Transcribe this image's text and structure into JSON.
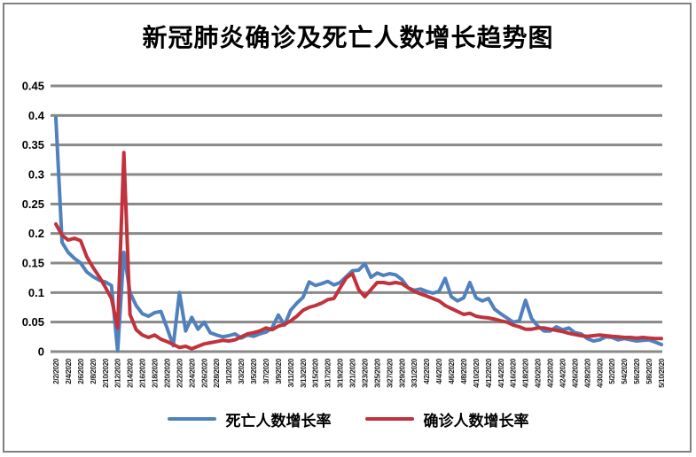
{
  "title": "新冠肺炎确诊及死亡人数增长趋势图",
  "colors": {
    "death_series": "#4F81BD",
    "confirmed_series": "#C0333D",
    "gridline": "#898989",
    "frame_border": "#808080",
    "axis_text": "#1a1a1a"
  },
  "legend": {
    "items": [
      {
        "label": "死亡人数增长率",
        "color": "#4F81BD"
      },
      {
        "label": "确诊人数增长率",
        "color": "#C0333D"
      }
    ]
  },
  "chart_data": {
    "type": "line",
    "title": "新冠肺炎确诊及死亡人数增长趋势图",
    "xlabel": "",
    "ylabel": "",
    "ylim": [
      0,
      0.45
    ],
    "y_ticks": [
      "0",
      "0.05",
      "0.1",
      "0.15",
      "0.2",
      "0.25",
      "0.3",
      "0.35",
      "0.4",
      "0.45"
    ],
    "grid": "horizontal",
    "legend_position": "bottom",
    "x_label_every": 2,
    "x": [
      "2/2/2020",
      "2/3/2020",
      "2/4/2020",
      "2/5/2020",
      "2/6/2020",
      "2/7/2020",
      "2/8/2020",
      "2/9/2020",
      "2/10/2020",
      "2/11/2020",
      "2/12/2020",
      "2/13/2020",
      "2/14/2020",
      "2/15/2020",
      "2/16/2020",
      "2/17/2020",
      "2/18/2020",
      "2/19/2020",
      "2/20/2020",
      "2/21/2020",
      "2/22/2020",
      "2/23/2020",
      "2/24/2020",
      "2/25/2020",
      "2/26/2020",
      "2/27/2020",
      "2/28/2020",
      "2/29/2020",
      "3/1/2020",
      "3/2/2020",
      "3/3/2020",
      "3/4/2020",
      "3/5/2020",
      "3/6/2020",
      "3/7/2020",
      "3/8/2020",
      "3/9/2020",
      "3/10/2020",
      "3/11/2020",
      "3/12/2020",
      "3/13/2020",
      "3/14/2020",
      "3/15/2020",
      "3/16/2020",
      "3/17/2020",
      "3/18/2020",
      "3/19/2020",
      "3/20/2020",
      "3/21/2020",
      "3/22/2020",
      "3/23/2020",
      "3/24/2020",
      "3/25/2020",
      "3/26/2020",
      "3/27/2020",
      "3/28/2020",
      "3/29/2020",
      "3/30/2020",
      "3/31/2020",
      "4/1/2020",
      "4/2/2020",
      "4/3/2020",
      "4/4/2020",
      "4/5/2020",
      "4/6/2020",
      "4/7/2020",
      "4/8/2020",
      "4/9/2020",
      "4/10/2020",
      "4/11/2020",
      "4/12/2020",
      "4/13/2020",
      "4/14/2020",
      "4/15/2020",
      "4/16/2020",
      "4/17/2020",
      "4/18/2020",
      "4/19/2020",
      "4/20/2020",
      "4/21/2020",
      "4/22/2020",
      "4/23/2020",
      "4/24/2020",
      "4/25/2020",
      "4/26/2020",
      "4/27/2020",
      "4/28/2020",
      "4/29/2020",
      "4/30/2020",
      "5/1/2020",
      "5/2/2020",
      "5/3/2020",
      "5/4/2020",
      "5/5/2020",
      "5/6/2020",
      "5/7/2020",
      "5/8/2020",
      "5/9/2020",
      "5/10/2020"
    ],
    "series": [
      {
        "name": "死亡人数增长率",
        "color": "#4F81BD",
        "values": [
          0.396,
          0.185,
          0.168,
          0.158,
          0.15,
          0.135,
          0.127,
          0.121,
          0.118,
          0.112,
          0.001,
          0.168,
          0.1,
          0.078,
          0.064,
          0.06,
          0.066,
          0.068,
          0.04,
          0.01,
          0.1,
          0.035,
          0.058,
          0.038,
          0.05,
          0.032,
          0.028,
          0.025,
          0.027,
          0.03,
          0.023,
          0.028,
          0.026,
          0.03,
          0.033,
          0.04,
          0.062,
          0.045,
          0.07,
          0.082,
          0.092,
          0.118,
          0.112,
          0.115,
          0.119,
          0.113,
          0.117,
          0.127,
          0.137,
          0.138,
          0.149,
          0.126,
          0.133,
          0.129,
          0.132,
          0.13,
          0.122,
          0.108,
          0.104,
          0.106,
          0.102,
          0.099,
          0.102,
          0.124,
          0.093,
          0.086,
          0.091,
          0.117,
          0.091,
          0.086,
          0.09,
          0.072,
          0.064,
          0.057,
          0.05,
          0.052,
          0.087,
          0.056,
          0.043,
          0.035,
          0.035,
          0.042,
          0.037,
          0.04,
          0.032,
          0.03,
          0.022,
          0.018,
          0.02,
          0.025,
          0.024,
          0.02,
          0.022,
          0.02,
          0.018,
          0.019,
          0.02,
          0.016,
          0.012
        ]
      },
      {
        "name": "确诊人数增长率",
        "color": "#C0333D",
        "values": [
          0.216,
          0.197,
          0.189,
          0.192,
          0.188,
          0.161,
          0.143,
          0.127,
          0.109,
          0.09,
          0.04,
          0.337,
          0.063,
          0.037,
          0.028,
          0.024,
          0.028,
          0.021,
          0.017,
          0.012,
          0.007,
          0.009,
          0.005,
          0.009,
          0.013,
          0.015,
          0.017,
          0.019,
          0.018,
          0.02,
          0.025,
          0.03,
          0.032,
          0.035,
          0.04,
          0.037,
          0.043,
          0.046,
          0.052,
          0.06,
          0.07,
          0.075,
          0.078,
          0.082,
          0.088,
          0.09,
          0.108,
          0.125,
          0.132,
          0.105,
          0.093,
          0.105,
          0.117,
          0.117,
          0.115,
          0.117,
          0.115,
          0.108,
          0.102,
          0.098,
          0.094,
          0.09,
          0.086,
          0.078,
          0.073,
          0.068,
          0.063,
          0.065,
          0.06,
          0.058,
          0.057,
          0.055,
          0.052,
          0.05,
          0.045,
          0.042,
          0.038,
          0.038,
          0.04,
          0.04,
          0.038,
          0.036,
          0.034,
          0.031,
          0.029,
          0.027,
          0.026,
          0.027,
          0.028,
          0.027,
          0.026,
          0.025,
          0.024,
          0.024,
          0.023,
          0.024,
          0.023,
          0.022,
          0.022
        ]
      }
    ]
  }
}
